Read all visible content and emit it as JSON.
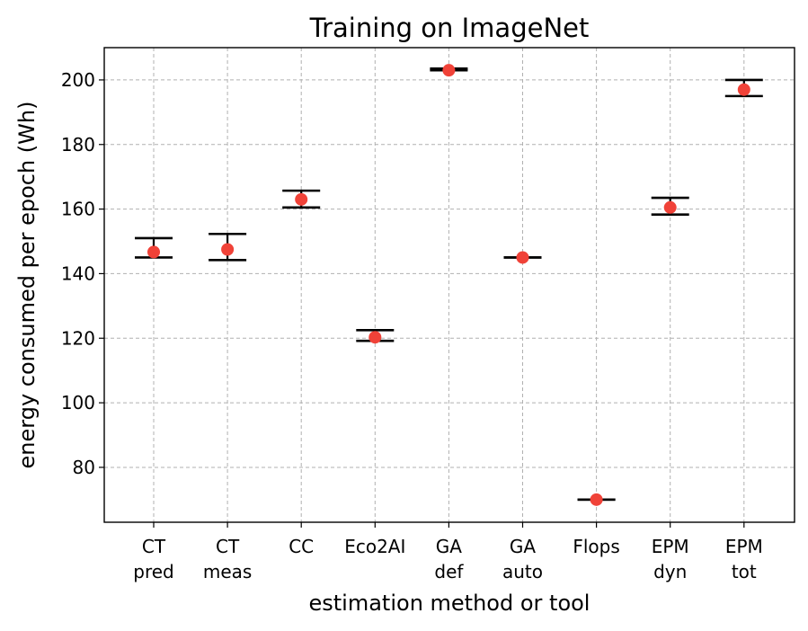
{
  "chart_data": {
    "type": "scatter",
    "title": "Training on ImageNet",
    "xlabel": "estimation method or tool",
    "ylabel": "energy consumed per epoch (Wh)",
    "ylim": [
      63,
      210
    ],
    "yticks": [
      80,
      100,
      120,
      140,
      160,
      180,
      200
    ],
    "grid": true,
    "categories": [
      {
        "label_line1": "CT",
        "label_line2": "pred"
      },
      {
        "label_line1": "CT",
        "label_line2": "meas"
      },
      {
        "label_line1": "CC",
        "label_line2": ""
      },
      {
        "label_line1": "Eco2AI",
        "label_line2": ""
      },
      {
        "label_line1": "GA",
        "label_line2": "def"
      },
      {
        "label_line1": "GA",
        "label_line2": "auto"
      },
      {
        "label_line1": "Flops",
        "label_line2": ""
      },
      {
        "label_line1": "EPM",
        "label_line2": "dyn"
      },
      {
        "label_line1": "EPM",
        "label_line2": "tot"
      }
    ],
    "values": [
      146.7,
      147.5,
      163.0,
      120.3,
      203.0,
      145.0,
      70.0,
      160.5,
      197.0
    ],
    "err_low": [
      145.0,
      144.2,
      160.5,
      119.2,
      203.0,
      145.0,
      70.0,
      158.3,
      195.0
    ],
    "err_high": [
      151.0,
      152.3,
      165.7,
      122.5,
      203.5,
      145.0,
      70.0,
      163.5,
      200.0
    ],
    "marker_color": "#f04238",
    "errorbar_color": "#000000"
  }
}
